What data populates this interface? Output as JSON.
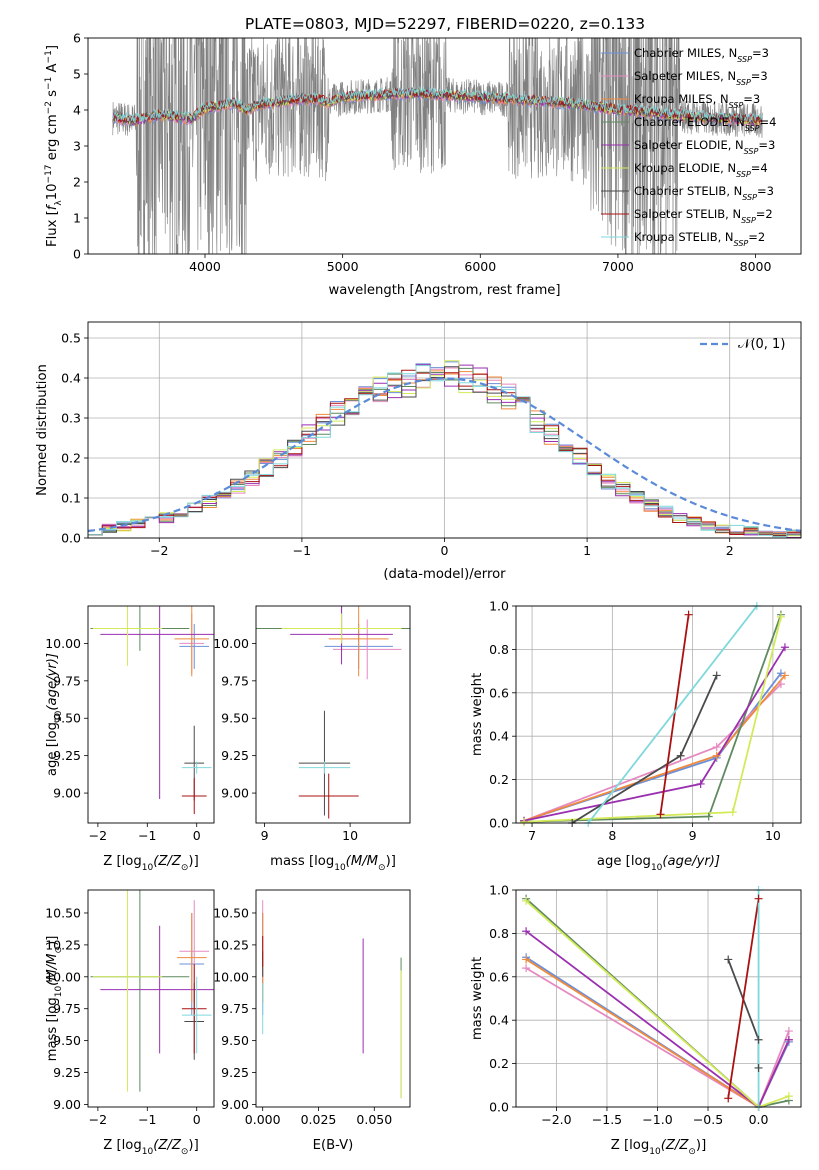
{
  "figure_title": "PLATE=0803, MJD=52297, FIBERID=0220, z=0.133",
  "series_styles": [
    {
      "name": "Chabrier MILES, N$_{SSP}$=3",
      "label_main": "Chabrier MILES, N",
      "label_sub": "SSP",
      "label_tail": "=3",
      "color": "#6b8fd8"
    },
    {
      "name": "Salpeter MILES, N$_{SSP}$=3",
      "label_main": "Salpeter MILES, N",
      "label_sub": "SSP",
      "label_tail": "=3",
      "color": "#e58ac0"
    },
    {
      "name": "Kroupa MILES, N$_{SSP}$=3",
      "label_main": "Kroupa MILES, N",
      "label_sub": "SSP",
      "label_tail": "=3",
      "color": "#f08a3c"
    },
    {
      "name": "Chabrier ELODIE, N$_{SSP}$=4",
      "label_main": "Chabrier ELODIE, N",
      "label_sub": "SSP",
      "label_tail": "=4",
      "color": "#5f8a5f"
    },
    {
      "name": "Salpeter ELODIE, N$_{SSP}$=3",
      "label_main": "Salpeter ELODIE, N",
      "label_sub": "SSP",
      "label_tail": "=3",
      "color": "#9a2fb0"
    },
    {
      "name": "Kroupa ELODIE, N$_{SSP}$=4",
      "label_main": "Kroupa ELODIE, N",
      "label_sub": "SSP",
      "label_tail": "=4",
      "color": "#d4ea5a"
    },
    {
      "name": "Chabrier STELIB, N$_{SSP}$=3",
      "label_main": "Chabrier STELIB, N",
      "label_sub": "SSP",
      "label_tail": "=3",
      "color": "#4a4a4a"
    },
    {
      "name": "Salpeter STELIB, N$_{SSP}$=2",
      "label_main": "Salpeter STELIB, N",
      "label_sub": "SSP",
      "label_tail": "=2",
      "color": "#aa1111"
    },
    {
      "name": "Kroupa STELIB, N$_{SSP}$=2",
      "label_main": "Kroupa STELIB, N",
      "label_sub": "SSP",
      "label_tail": "=2",
      "color": "#7fd8dc"
    }
  ],
  "chart_data": [
    {
      "id": "spectrum",
      "type": "line",
      "title": "PLATE=0803, MJD=52297, FIBERID=0220, z=0.133",
      "xlabel": "wavelength [Angstrom, rest frame]",
      "ylabel": "Flux [f_λ 10^-17 erg cm^-2 s^-1 A^-1]",
      "ylabel_parts": {
        "a": "Flux [",
        "b": "f",
        "bsub": "λ",
        "c": "10",
        "csup": "−17",
        "d": " erg cm",
        "dsup": "−2",
        "e": " s",
        "esup": "−1",
        "f": " A",
        "fsup": "−1",
        "g": "]"
      },
      "xlim": [
        3150,
        8330
      ],
      "ylim": [
        0,
        6
      ],
      "xticks": [
        4000,
        5000,
        6000,
        7000,
        8000
      ],
      "yticks": [
        0,
        1,
        2,
        3,
        4,
        5,
        6
      ],
      "data_color": "#808080",
      "continuum_x": [
        3330,
        3400,
        3500,
        3600,
        3700,
        3800,
        3900,
        4000,
        4100,
        4200,
        4300,
        4400,
        4500,
        4600,
        4700,
        4800,
        4900,
        5000,
        5200,
        5400,
        5600,
        5800,
        6000,
        6200,
        6400,
        6600,
        6800,
        7000,
        7200,
        7400,
        7600,
        7800,
        8000,
        8050
      ],
      "continuum_y": [
        3.8,
        3.75,
        3.7,
        3.8,
        3.85,
        3.8,
        3.75,
        4.05,
        4.1,
        4.2,
        4.0,
        4.15,
        4.2,
        4.25,
        4.3,
        4.3,
        4.2,
        4.35,
        4.4,
        4.45,
        4.45,
        4.4,
        4.35,
        4.3,
        4.25,
        4.2,
        4.1,
        4.0,
        3.95,
        3.85,
        3.8,
        3.75,
        3.7,
        3.7
      ],
      "legend_position": "upper right"
    },
    {
      "id": "residuals",
      "type": "line",
      "xlabel": "(data-model)/error",
      "ylabel": "Normed distribution",
      "xlim": [
        -2.5,
        2.5
      ],
      "ylim": [
        0,
        0.54
      ],
      "xticks": [
        -2,
        -1,
        0,
        1,
        2
      ],
      "xtick_labels": [
        "−2",
        "−1",
        "0",
        "1",
        "2"
      ],
      "yticks": [
        0.0,
        0.1,
        0.2,
        0.3,
        0.4,
        0.5
      ],
      "ytick_labels": [
        "0.0",
        "0.1",
        "0.2",
        "0.3",
        "0.4",
        "0.5"
      ],
      "grid": true,
      "bin_width": 0.1,
      "bin_start": -2.5,
      "histogram_base": [
        0.02,
        0.025,
        0.03,
        0.035,
        0.04,
        0.05,
        0.06,
        0.075,
        0.09,
        0.11,
        0.13,
        0.15,
        0.175,
        0.2,
        0.225,
        0.255,
        0.28,
        0.31,
        0.33,
        0.35,
        0.37,
        0.38,
        0.39,
        0.4,
        0.41,
        0.41,
        0.4,
        0.39,
        0.37,
        0.35,
        0.32,
        0.29,
        0.26,
        0.23,
        0.2,
        0.17,
        0.14,
        0.12,
        0.1,
        0.08,
        0.065,
        0.05,
        0.04,
        0.03,
        0.025,
        0.02,
        0.017,
        0.015,
        0.012,
        0.01
      ],
      "gaussian_label": "𝒩(0, 1)",
      "gaussian_color": "#5b8bd8",
      "legend_position": "upper right"
    },
    {
      "id": "age_vs_Z",
      "type": "scatter",
      "xlabel_main": "Z [log",
      "xlabel_sub": "10",
      "xlabel_tail": "(Z/Z",
      "xlabel_sub2": "⊙",
      "xlabel_end": ")]",
      "ylabel": "age  [log10(age/yr)]",
      "ylabel_main": "age  [log",
      "ylabel_sub": "10",
      "ylabel_tail": "(age/yr)]",
      "xlim": [
        -2.2,
        0.35
      ],
      "ylim": [
        8.8,
        10.25
      ],
      "xticks": [
        -2,
        -1,
        0
      ],
      "xtick_labels": [
        "−2",
        "−1",
        "0"
      ],
      "yticks": [
        9.0,
        9.25,
        9.5,
        9.75,
        10.0
      ],
      "ytick_labels": [
        "9.00",
        "9.25",
        "9.50",
        "9.75",
        "10.00"
      ],
      "points": [
        {
          "s": 0,
          "x": -0.05,
          "y": 9.98,
          "xerr": 0.3,
          "yerr": 0.15
        },
        {
          "s": 1,
          "x": -0.1,
          "y": 10.0,
          "xerr": 0.25,
          "yerr": 0.2
        },
        {
          "s": 2,
          "x": -0.1,
          "y": 10.03,
          "xerr": 0.35,
          "yerr": 0.25
        },
        {
          "s": 3,
          "x": -1.15,
          "y": 10.1,
          "xerr": 1.0,
          "yerr": 0.15
        },
        {
          "s": 4,
          "x": -0.75,
          "y": 10.06,
          "xerr": 1.2,
          "yerr": 1.1
        },
        {
          "s": 5,
          "x": -1.4,
          "y": 10.1,
          "xerr": 0.7,
          "yerr": 0.25
        },
        {
          "s": 6,
          "x": -0.05,
          "y": 9.2,
          "xerr": 0.2,
          "yerr": 0.25
        },
        {
          "s": 7,
          "x": -0.05,
          "y": 8.98,
          "xerr": 0.25,
          "yerr": 0.12
        },
        {
          "s": 8,
          "x": 0.0,
          "y": 9.17,
          "xerr": 0.3,
          "yerr": 0.04
        }
      ]
    },
    {
      "id": "age_vs_mass",
      "type": "scatter",
      "xlabel_main": "mass [log",
      "xlabel_sub": "10",
      "xlabel_tail": "(M/M",
      "xlabel_sub2": "⊙",
      "xlabel_end": ")]",
      "xlim": [
        8.9,
        10.7
      ],
      "ylim": [
        8.8,
        10.25
      ],
      "xticks": [
        9,
        10
      ],
      "xtick_labels": [
        "9",
        "10"
      ],
      "yticks": [
        9.0,
        9.25,
        9.5,
        9.75,
        10.0
      ],
      "ytick_labels": [
        "9.00",
        "9.25",
        "9.50",
        "9.75",
        "10.00"
      ],
      "points": [
        {
          "s": 0,
          "x": 10.1,
          "y": 9.98,
          "xerr": 0.4,
          "yerr": 0.15
        },
        {
          "s": 1,
          "x": 10.2,
          "y": 9.96,
          "xerr": 0.4,
          "yerr": 0.2
        },
        {
          "s": 2,
          "x": 10.1,
          "y": 10.03,
          "xerr": 0.35,
          "yerr": 0.25
        },
        {
          "s": 3,
          "x": 9.9,
          "y": 10.1,
          "xerr": 1.0,
          "yerr": 0.15
        },
        {
          "s": 4,
          "x": 9.9,
          "y": 10.06,
          "xerr": 0.6,
          "yerr": 0.2
        },
        {
          "s": 5,
          "x": 9.9,
          "y": 10.1,
          "xerr": 0.7,
          "yerr": 0.1
        },
        {
          "s": 6,
          "x": 9.7,
          "y": 9.2,
          "xerr": 0.3,
          "yerr": 0.35
        },
        {
          "s": 7,
          "x": 9.75,
          "y": 8.98,
          "xerr": 0.35,
          "yerr": 0.15
        },
        {
          "s": 8,
          "x": 9.7,
          "y": 9.17,
          "xerr": 0.3,
          "yerr": 0.04
        }
      ]
    },
    {
      "id": "massweight_vs_age",
      "type": "line",
      "xlabel_main": "age  [log",
      "xlabel_sub": "10",
      "xlabel_tail": "(age/yr)]",
      "ylabel": "mass weight",
      "xlim": [
        6.8,
        10.35
      ],
      "ylim": [
        0,
        1
      ],
      "xticks": [
        7,
        8,
        9,
        10
      ],
      "xtick_labels": [
        "7",
        "8",
        "9",
        "10"
      ],
      "yticks": [
        0,
        0.2,
        0.4,
        0.6,
        0.8,
        1.0
      ],
      "ytick_labels": [
        "0.0",
        "0.2",
        "0.4",
        "0.6",
        "0.8",
        "1.0"
      ],
      "grid": true,
      "series": [
        {
          "s": 0,
          "x": [
            6.9,
            9.3,
            10.1
          ],
          "y": [
            0.01,
            0.3,
            0.69
          ]
        },
        {
          "s": 1,
          "x": [
            6.9,
            9.3,
            10.1
          ],
          "y": [
            0.01,
            0.35,
            0.64
          ]
        },
        {
          "s": 2,
          "x": [
            6.9,
            9.3,
            10.15
          ],
          "y": [
            0.01,
            0.31,
            0.68
          ]
        },
        {
          "s": 3,
          "x": [
            6.9,
            9.2,
            10.1
          ],
          "y": [
            0.005,
            0.03,
            0.96
          ]
        },
        {
          "s": 4,
          "x": [
            6.9,
            9.1,
            10.15
          ],
          "y": [
            0.01,
            0.18,
            0.81
          ]
        },
        {
          "s": 5,
          "x": [
            6.9,
            9.5,
            10.1
          ],
          "y": [
            0.005,
            0.05,
            0.95
          ]
        },
        {
          "s": 6,
          "x": [
            7.5,
            8.85,
            9.3
          ],
          "y": [
            0.0,
            0.31,
            0.68
          ]
        },
        {
          "s": 7,
          "x": [
            8.6,
            8.95
          ],
          "y": [
            0.04,
            0.96
          ]
        },
        {
          "s": 8,
          "x": [
            7.7,
            9.8
          ],
          "y": [
            0.0,
            1.0
          ]
        }
      ]
    },
    {
      "id": "mass_vs_Z",
      "type": "scatter",
      "xlabel_main": "Z [log",
      "xlabel_sub": "10",
      "xlabel_tail": "(Z/Z",
      "xlabel_sub2": "⊙",
      "xlabel_end": ")]",
      "ylabel_main": "mass [log",
      "ylabel_sub": "10",
      "ylabel_tail": "(M/M",
      "ylabel_sub2": "⊙",
      "ylabel_end": ")]",
      "xlim": [
        -2.2,
        0.35
      ],
      "ylim": [
        8.98,
        10.68
      ],
      "xticks": [
        -2,
        -1,
        0
      ],
      "xtick_labels": [
        "−2",
        "−1",
        "0"
      ],
      "yticks": [
        9.0,
        9.25,
        9.5,
        9.75,
        10.0,
        10.25,
        10.5
      ],
      "ytick_labels": [
        "9.00",
        "9.25",
        "9.50",
        "9.75",
        "10.00",
        "10.25",
        "10.50"
      ],
      "points": [
        {
          "s": 0,
          "x": -0.1,
          "y": 10.1,
          "xerr": 0.25,
          "yerr": 0.4
        },
        {
          "s": 1,
          "x": -0.05,
          "y": 10.2,
          "xerr": 0.3,
          "yerr": 0.4
        },
        {
          "s": 2,
          "x": -0.1,
          "y": 10.15,
          "xerr": 0.3,
          "yerr": 0.35
        },
        {
          "s": 3,
          "x": -1.15,
          "y": 10.0,
          "xerr": 1.0,
          "yerr": 0.9
        },
        {
          "s": 4,
          "x": -0.75,
          "y": 9.9,
          "xerr": 1.2,
          "yerr": 0.5
        },
        {
          "s": 5,
          "x": -1.4,
          "y": 10.0,
          "xerr": 0.7,
          "yerr": 0.9
        },
        {
          "s": 6,
          "x": -0.05,
          "y": 9.65,
          "xerr": 0.2,
          "yerr": 0.3
        },
        {
          "s": 7,
          "x": -0.05,
          "y": 9.75,
          "xerr": 0.25,
          "yerr": 0.35
        },
        {
          "s": 8,
          "x": 0.0,
          "y": 9.7,
          "xerr": 0.3,
          "yerr": 0.3
        }
      ]
    },
    {
      "id": "mass_vs_EBV",
      "type": "scatter",
      "xlabel": "E(B-V)",
      "xlim": [
        -0.003,
        0.066
      ],
      "ylim": [
        8.98,
        10.68
      ],
      "xticks": [
        0.0,
        0.025,
        0.05
      ],
      "xtick_labels": [
        "0.000",
        "0.025",
        "0.050"
      ],
      "yticks": [
        9.0,
        9.25,
        9.5,
        9.75,
        10.0,
        10.25,
        10.5
      ],
      "ytick_labels": [
        "9.00",
        "9.25",
        "9.50",
        "9.75",
        "10.00",
        "10.25",
        "10.50"
      ],
      "points": [
        {
          "s": 0,
          "x": 0.0,
          "y": 10.1,
          "xerr": 0.0,
          "yerr": 0.4
        },
        {
          "s": 1,
          "x": 0.0,
          "y": 10.2,
          "xerr": 0.0,
          "yerr": 0.4
        },
        {
          "s": 2,
          "x": 0.0,
          "y": 10.15,
          "xerr": 0.0,
          "yerr": 0.35
        },
        {
          "s": 3,
          "x": 0.062,
          "y": 9.6,
          "xerr": 0.0,
          "yerr": 0.55
        },
        {
          "s": 4,
          "x": 0.045,
          "y": 9.85,
          "xerr": 0.0,
          "yerr": 0.45
        },
        {
          "s": 5,
          "x": 0.062,
          "y": 9.55,
          "xerr": 0.0,
          "yerr": 0.5
        },
        {
          "s": 6,
          "x": 0.0,
          "y": 10.1,
          "xerr": 0.0,
          "yerr": 0.1
        },
        {
          "s": 7,
          "x": 0.0,
          "y": 10.2,
          "xerr": 0.0,
          "yerr": 0.12
        },
        {
          "s": 8,
          "x": 0.0,
          "y": 9.75,
          "xerr": 0.0,
          "yerr": 0.2
        }
      ]
    },
    {
      "id": "massweight_vs_Z",
      "type": "line",
      "xlabel_main": "Z [log",
      "xlabel_sub": "10",
      "xlabel_tail": "(Z/Z",
      "xlabel_sub2": "⊙",
      "xlabel_end": ")]",
      "ylabel": "mass weight",
      "xlim": [
        -2.4,
        0.42
      ],
      "ylim": [
        0,
        1
      ],
      "xticks": [
        -2.0,
        -1.5,
        -1.0,
        -0.5,
        0.0
      ],
      "xtick_labels": [
        "−2.0",
        "−1.5",
        "−1.0",
        "−0.5",
        "0.0"
      ],
      "yticks": [
        0,
        0.2,
        0.4,
        0.6,
        0.8,
        1.0
      ],
      "ytick_labels": [
        "0.0",
        "0.2",
        "0.4",
        "0.6",
        "0.8",
        "1.0"
      ],
      "grid": true,
      "series": [
        {
          "s": 0,
          "x": [
            -2.3,
            0.0,
            0.3
          ],
          "y": [
            0.69,
            0.0,
            0.3
          ]
        },
        {
          "s": 1,
          "x": [
            -2.3,
            0.0,
            0.3
          ],
          "y": [
            0.64,
            0.0,
            0.35
          ]
        },
        {
          "s": 2,
          "x": [
            -2.3,
            0.0,
            0.3
          ],
          "y": [
            0.68,
            0.0,
            0.31
          ]
        },
        {
          "s": 3,
          "x": [
            -2.3,
            0.0,
            0.3
          ],
          "y": [
            0.96,
            0.0,
            0.03
          ]
        },
        {
          "s": 4,
          "x": [
            -2.3,
            0.0,
            0.3
          ],
          "y": [
            0.81,
            0.0,
            0.31
          ]
        },
        {
          "s": 5,
          "x": [
            -2.3,
            0.0,
            0.3
          ],
          "y": [
            0.95,
            0.0,
            0.05
          ]
        },
        {
          "s": 6,
          "x": [
            -0.3,
            0.0,
            0.0
          ],
          "y": [
            0.68,
            0.31,
            0.18
          ]
        },
        {
          "s": 7,
          "x": [
            -0.3,
            0.0
          ],
          "y": [
            0.04,
            0.96
          ]
        },
        {
          "s": 8,
          "x": [
            0.0,
            0.0
          ],
          "y": [
            0.0,
            1.0
          ]
        }
      ]
    }
  ]
}
